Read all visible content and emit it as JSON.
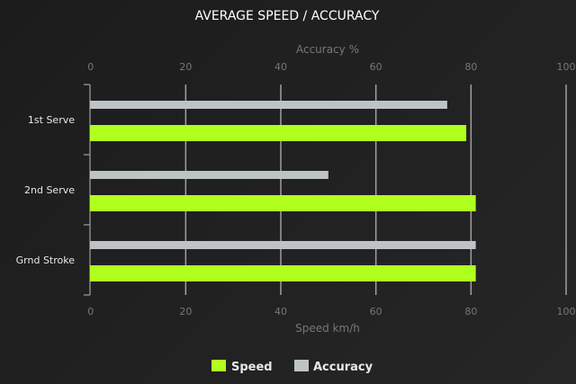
{
  "chart_data": {
    "type": "bar",
    "orientation": "horizontal",
    "title": "AVERAGE SPEED / ACCURACY",
    "categories": [
      "1st Serve",
      "2nd Serve",
      "Grnd Stroke"
    ],
    "series": [
      {
        "name": "Speed",
        "values": [
          79,
          81,
          81
        ],
        "color": "#b0ff1e",
        "axis": "bottom"
      },
      {
        "name": "Accuracy",
        "values": [
          75,
          50,
          81
        ],
        "color": "#bec3c6",
        "axis": "top"
      }
    ],
    "xlabel_top": "Accuracy %",
    "xlabel_bottom": "Speed km/h",
    "xlim": [
      0,
      100
    ],
    "ticks": [
      "0",
      "20",
      "40",
      "60",
      "80",
      "100"
    ],
    "grid": true,
    "legend": "bottom"
  }
}
